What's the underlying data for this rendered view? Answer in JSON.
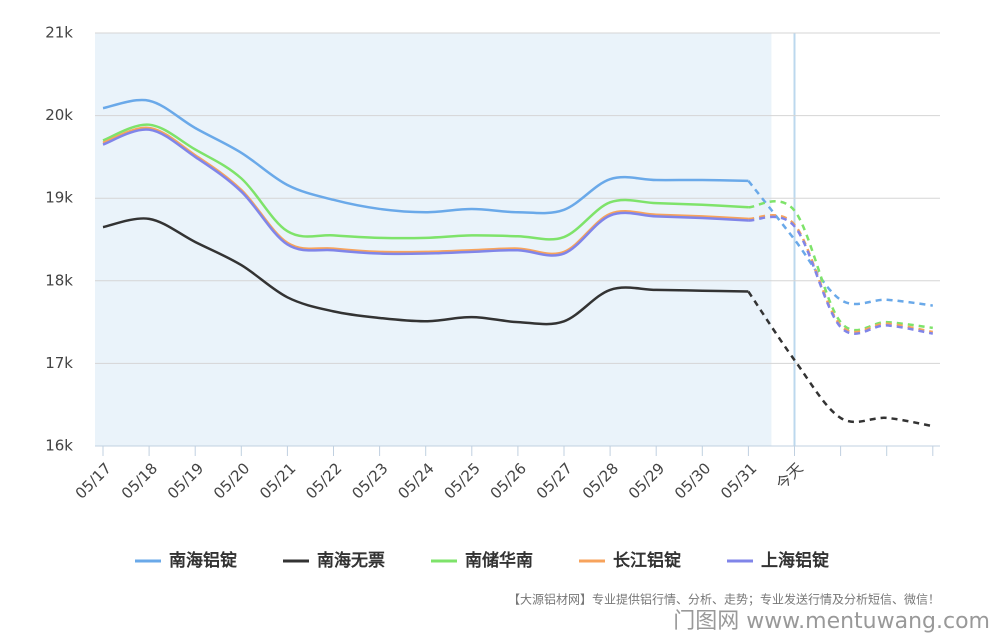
{
  "chart_data": {
    "type": "line",
    "categories": [
      "05/17",
      "05/18",
      "05/19",
      "05/20",
      "05/21",
      "05/22",
      "05/23",
      "05/24",
      "05/25",
      "05/26",
      "05/27",
      "05/28",
      "05/29",
      "05/30",
      "05/31",
      "今天",
      null,
      null,
      null
    ],
    "series": [
      {
        "name": "南海铝锭",
        "color": "#6aa9e9",
        "values": [
          20090,
          20180,
          19850,
          19550,
          19160,
          18980,
          18870,
          18830,
          18870,
          18830,
          18860,
          19230,
          19220,
          19220,
          19210,
          18500,
          17770,
          17770,
          17700
        ]
      },
      {
        "name": "南海无票",
        "color": "#333333",
        "values": [
          18650,
          18750,
          18470,
          18190,
          17800,
          17630,
          17550,
          17510,
          17560,
          17500,
          17510,
          17890,
          17890,
          17880,
          17870,
          17040,
          16340,
          16340,
          16240
        ]
      },
      {
        "name": "南储华南",
        "color": "#7ee36a",
        "values": [
          19700,
          19890,
          19590,
          19240,
          18600,
          18550,
          18520,
          18520,
          18550,
          18540,
          18530,
          18950,
          18940,
          18920,
          18890,
          18850,
          17500,
          17500,
          17430
        ]
      },
      {
        "name": "长江铝锭",
        "color": "#f7a35c",
        "values": [
          19670,
          19850,
          19520,
          19100,
          18460,
          18390,
          18350,
          18350,
          18370,
          18390,
          18350,
          18810,
          18800,
          18780,
          18750,
          18680,
          17460,
          17480,
          17380
        ]
      },
      {
        "name": "上海铝锭",
        "color": "#8085e9",
        "values": [
          19650,
          19830,
          19500,
          19080,
          18440,
          18370,
          18330,
          18330,
          18350,
          18370,
          18330,
          18790,
          18780,
          18760,
          18730,
          18660,
          17440,
          17460,
          17360
        ]
      }
    ],
    "ylim": [
      16000,
      21000
    ],
    "yticks": [
      {
        "value": 16000,
        "label": "16k"
      },
      {
        "value": 17000,
        "label": "17k"
      },
      {
        "value": 18000,
        "label": "18k"
      },
      {
        "value": 19000,
        "label": "19k"
      },
      {
        "value": 20000,
        "label": "20k"
      },
      {
        "value": 21000,
        "label": "21k"
      }
    ],
    "grid": true,
    "forecast_start": 14,
    "footer": "【大源铝材网】专业提供铝行情、分析、走势；专业发送行情及分析短信、微信！",
    "watermark": "门图网 www.mentuwang.com"
  }
}
